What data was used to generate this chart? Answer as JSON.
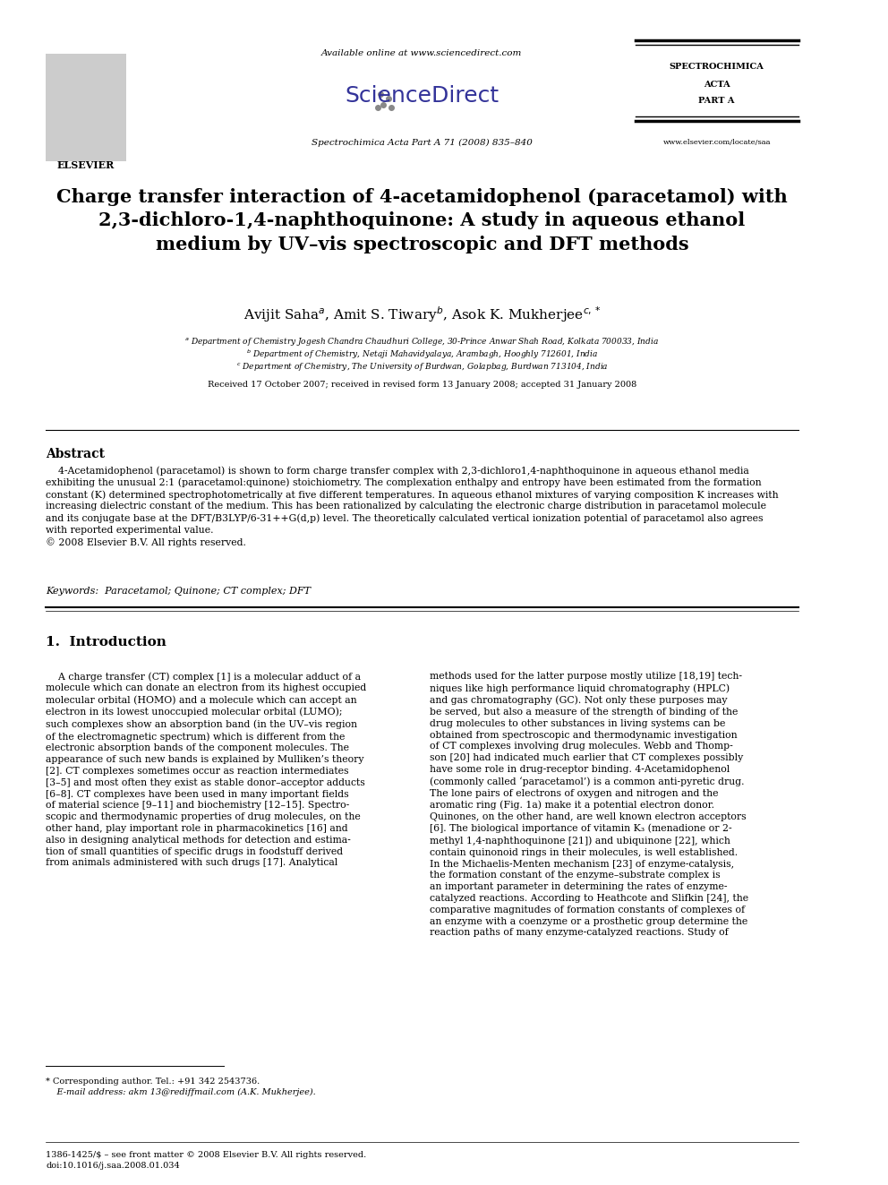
{
  "bg_color": "#ffffff",
  "header": {
    "available_online": "Available online at www.sciencedirect.com",
    "sciencedirect": "ScienceDirect",
    "journal_info": "Spectrochimica Acta Part A 71 (2008) 835–840",
    "journal_name_lines": [
      "SPECTROCHIMICA",
      "ACTA",
      "",
      "PART A"
    ],
    "website": "www.elsevier.com/locate/saa",
    "elsevier": "ELSEVIER"
  },
  "title": "Charge transfer interaction of 4-acetamidophenol (paracetamol) with\n2,3-dichloro-1,4-naphthoquinone: A study in aqueous ethanol\nmedium by UV–vis spectroscopic and DFT methods",
  "authors": "Avijit Saha à, Amit S. Tiwary ᵇ, Asok K. Mukherjee ᶜ,*",
  "authors_display": "Avijit Saha$^a$, Amit S. Tiwary$^b$, Asok K. Mukherjee$^{c,*}$",
  "affil_a": "$^a$ Department of Chemistry Jogesh Chandra Chaudhuri College, 30-Prince Anwar Shah Road, Kolkata 700033, India",
  "affil_b": "$^b$ Department of Chemistry, Netaji Mahavidyalaya, Arambagh, Hooghly 712601, India",
  "affil_c": "$^c$ Department of Chemistry, The University of Burdwan, Golapbag, Burdwan 713104, India",
  "received": "Received 17 October 2007; received in revised form 13 January 2008; accepted 31 January 2008",
  "abstract_title": "Abstract",
  "abstract_text": "    4-Acetamidophenol (paracetamol) is shown to form charge transfer complex with 2,3-dichloro1,4-naphthoquinone in aqueous ethanol media\nexhibiting the unusual 2:1 (paracetamol:quinone) stoichiometry. The complexation enthalpy and entropy have been estimated from the formation\nconstant (K) determined spectrophotometrically at five different temperatures. In aqueous ethanol mixtures of varying composition K increases with\nincreasing dielectric constant of the medium. This has been rationalized by calculating the electronic charge distribution in paracetamol molecule\nand its conjugate base at the DFT/B3LYP/6-31++G(d,p) level. The theoretically calculated vertical ionization potential of paracetamol also agrees\nwith reported experimental value.\n© 2008 Elsevier B.V. All rights reserved.",
  "keywords": "Keywords:  Paracetamol; Quinone; CT complex; DFT",
  "intro_title": "1.  Introduction",
  "intro_col1": "    A charge transfer (CT) complex [1] is a molecular adduct of a\nmolecule which can donate an electron from its highest occupied\nmolecular orbital (HOMO) and a molecule which can accept an\nelectron in its lowest unoccupied molecular orbital (LUMO);\nsuch complexes show an absorption band (in the UV–vis region\nof the electromagnetic spectrum) which is different from the\nelectronic absorption bands of the component molecules. The\nappearance of such new bands is explained by Mulliken’s theory\n[2]. CT complexes sometimes occur as reaction intermediates\n[3–5] and most often they exist as stable donor–acceptor adducts\n[6–8]. CT complexes have been used in many important fields\nof material science [9–11] and biochemistry [12–15]. Spectro-\nscopic and thermodynamic properties of drug molecules, on the\nother hand, play important role in pharmacokinetics [16] and\nalso in designing analytical methods for detection and estima-\ntion of small quantities of specific drugs in foodstuff derived\nfrom animals administered with such drugs [17]. Analytical",
  "intro_col2": "methods used for the latter purpose mostly utilize [18,19] tech-\nniques like high performance liquid chromatography (HPLC)\nand gas chromatography (GC). Not only these purposes may\nbe served, but also a measure of the strength of binding of the\ndrug molecules to other substances in living systems can be\nobtained from spectroscopic and thermodynamic investigation\nof CT complexes involving drug molecules. Webb and Thomp-\nson [20] had indicated much earlier that CT complexes possibly\nhave some role in drug-receptor binding. 4-Acetamidophenol\n(commonly called ‘paracetamol’) is a common anti-pyretic drug.\nThe lone pairs of electrons of oxygen and nitrogen and the\naromatic ring (Fig. 1a) make it a potential electron donor.\nQuinones, on the other hand, are well known electron acceptors\n[6]. The biological importance of vitamin K₃ (menadione or 2-\nmethyl 1,4-naphthoquinone [21]) and ubiquinone [22], which\ncontain quinonoid rings in their molecules, is well established.\nIn the Michaelis-Menten mechanism [23] of enzyme-catalysis,\nthe formation constant of the enzyme–substrate complex is\nan important parameter in determining the rates of enzyme-\ncatalyzed reactions. According to Heathcote and Slifkin [24], the\ncomparative magnitudes of formation constants of complexes of\nan enzyme with a coenzyme or a prosthetic group determine the\nreaction paths of many enzyme-catalyzed reactions. Study of",
  "footnote_star": "* Corresponding author. Tel.: +91 342 2543736.",
  "footnote_email": "    E-mail address: akm 13@rediffmail.com (A.K. Mukherjee).",
  "footer_issn": "1386-1425/$ – see front matter © 2008 Elsevier B.V. All rights reserved.",
  "footer_doi": "doi:10.1016/j.saa.2008.01.034"
}
